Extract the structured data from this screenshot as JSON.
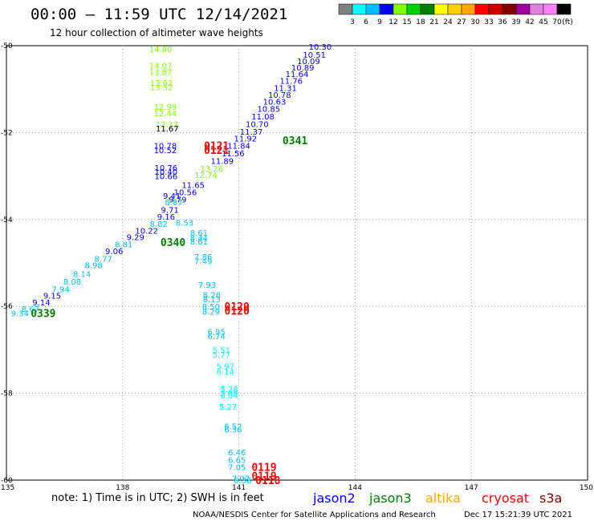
{
  "header": {
    "title": "00:00 – 11:59 UTC 12/14/2021",
    "subtitle": "12 hour collection of altimeter wave heights"
  },
  "color_scale": {
    "labels": [
      "3",
      "6",
      "9",
      "12",
      "15",
      "18",
      "21",
      "24",
      "27",
      "30",
      "33",
      "36",
      "39",
      "42",
      "45",
      "70"
    ],
    "colors": [
      "#808080",
      "#00ffff",
      "#00bfff",
      "#0000ff",
      "#7fff00",
      "#00d000",
      "#008000",
      "#ffff00",
      "#ffd000",
      "#ffa500",
      "#ff0000",
      "#d00000",
      "#800000",
      "#a000a0",
      "#e080e0",
      "#ff80ff",
      "#000000"
    ],
    "unit": "(ft)"
  },
  "footer": {
    "note": "note:  1) Time is in UTC;  2) SWH is in feet",
    "credit": "NOAA/NESDIS Center for Satellite Applications and Research",
    "timestamp": "Dec 17 15:21:39 UTC 2021"
  },
  "legend": [
    {
      "name": "jason2",
      "color": "#0000ff"
    },
    {
      "name": "jason3",
      "color": "#008000"
    },
    {
      "name": "altika",
      "color": "#ffa500"
    },
    {
      "name": "cryosat",
      "color": "#ff0000"
    },
    {
      "name": "s3a",
      "color": "#800000"
    }
  ],
  "chart_data": {
    "type": "scatter",
    "xlim": [
      135,
      150
    ],
    "ylim": [
      -60,
      -50
    ],
    "x_ticks": [
      "135",
      "138",
      "141",
      "144",
      "147",
      "150"
    ],
    "y_ticks": [
      "-50",
      "-52",
      "-54",
      "-56",
      "-58",
      "-60"
    ],
    "grid": true,
    "points": [
      {
        "x": 143.1,
        "y": -50.02,
        "v": "10.30",
        "c": "#0000ff"
      },
      {
        "x": 142.95,
        "y": -50.2,
        "v": "10.51",
        "c": "#0000ff"
      },
      {
        "x": 142.8,
        "y": -50.35,
        "v": "10.09",
        "c": "#0000ff"
      },
      {
        "x": 142.65,
        "y": -50.5,
        "v": "10.89",
        "c": "#0000ff"
      },
      {
        "x": 142.5,
        "y": -50.65,
        "v": "11.64",
        "c": "#0000ff"
      },
      {
        "x": 142.35,
        "y": -50.8,
        "v": "11.76",
        "c": "#0000ff"
      },
      {
        "x": 142.2,
        "y": -50.97,
        "v": "11.31",
        "c": "#0000ff"
      },
      {
        "x": 142.05,
        "y": -51.13,
        "v": "10.78",
        "c": "#0000ff"
      },
      {
        "x": 141.92,
        "y": -51.28,
        "v": "10.63",
        "c": "#0000ff"
      },
      {
        "x": 141.77,
        "y": -51.45,
        "v": "10.85",
        "c": "#0000ff"
      },
      {
        "x": 141.62,
        "y": -51.62,
        "v": "11.08",
        "c": "#0000ff"
      },
      {
        "x": 141.47,
        "y": -51.8,
        "v": "10.70",
        "c": "#0000ff"
      },
      {
        "x": 141.32,
        "y": -51.97,
        "v": "11.37",
        "c": "#0000ff"
      },
      {
        "x": 141.17,
        "y": -52.13,
        "v": "11.92",
        "c": "#0000ff"
      },
      {
        "x": 141.0,
        "y": -52.3,
        "v": "11.84",
        "c": "#0000ff"
      },
      {
        "x": 140.85,
        "y": -52.47,
        "v": "11.56",
        "c": "#0000ff"
      },
      {
        "x": 140.57,
        "y": -52.65,
        "v": "11.89",
        "c": "#0000ff"
      },
      {
        "x": 139.82,
        "y": -53.2,
        "v": "11.65",
        "c": "#0000ff"
      },
      {
        "x": 139.62,
        "y": -53.37,
        "v": "10.56",
        "c": "#0000ff"
      },
      {
        "x": 139.42,
        "y": -53.53,
        "v": "9.79",
        "c": "#0000ff"
      },
      {
        "x": 139.27,
        "y": -53.45,
        "v": "9.41",
        "c": "#0000ff"
      },
      {
        "x": 139.32,
        "y": -53.6,
        "v": "8.87",
        "c": "#00bfff"
      },
      {
        "x": 139.22,
        "y": -53.77,
        "v": "9.71",
        "c": "#0000ff"
      },
      {
        "x": 139.12,
        "y": -53.93,
        "v": "9.16",
        "c": "#0000ff"
      },
      {
        "x": 139.6,
        "y": -54.07,
        "v": "8.53",
        "c": "#00bfff"
      },
      {
        "x": 138.93,
        "y": -54.1,
        "v": "8.82",
        "c": "#00bfff"
      },
      {
        "x": 138.62,
        "y": -54.25,
        "v": "10.22",
        "c": "#0000ff"
      },
      {
        "x": 138.33,
        "y": -54.4,
        "v": "9.29",
        "c": "#0000ff"
      },
      {
        "x": 139.97,
        "y": -54.3,
        "v": "8.61",
        "c": "#00bfff"
      },
      {
        "x": 139.97,
        "y": -54.42,
        "v": "8.44",
        "c": "#00bfff"
      },
      {
        "x": 139.97,
        "y": -54.5,
        "v": "8.61",
        "c": "#00bfff"
      },
      {
        "x": 138.03,
        "y": -54.57,
        "v": "8.81",
        "c": "#00bfff"
      },
      {
        "x": 137.78,
        "y": -54.72,
        "v": "9.06",
        "c": "#0000ff"
      },
      {
        "x": 137.5,
        "y": -54.9,
        "v": "8.77",
        "c": "#00bfff"
      },
      {
        "x": 140.08,
        "y": -54.85,
        "v": "7.86",
        "c": "#00bfff"
      },
      {
        "x": 140.08,
        "y": -54.95,
        "v": "7.49",
        "c": "#00bfff"
      },
      {
        "x": 137.25,
        "y": -55.05,
        "v": "8.98",
        "c": "#00bfff"
      },
      {
        "x": 136.95,
        "y": -55.25,
        "v": "8.14",
        "c": "#00bfff"
      },
      {
        "x": 136.7,
        "y": -55.42,
        "v": "8.08",
        "c": "#00bfff"
      },
      {
        "x": 140.18,
        "y": -55.5,
        "v": "7.93",
        "c": "#00bfff"
      },
      {
        "x": 136.4,
        "y": -55.6,
        "v": "7.94",
        "c": "#00bfff"
      },
      {
        "x": 140.3,
        "y": -55.73,
        "v": "8.28",
        "c": "#00bfff"
      },
      {
        "x": 136.18,
        "y": -55.75,
        "v": "9.15",
        "c": "#0000ff"
      },
      {
        "x": 140.3,
        "y": -55.83,
        "v": "8.13",
        "c": "#00bfff"
      },
      {
        "x": 135.9,
        "y": -55.9,
        "v": "9.14",
        "c": "#0000ff"
      },
      {
        "x": 140.28,
        "y": -56.0,
        "v": "8.50",
        "c": "#00bfff"
      },
      {
        "x": 135.62,
        "y": -56.05,
        "v": "8.67",
        "c": "#00bfff"
      },
      {
        "x": 140.28,
        "y": -56.12,
        "v": "8.29",
        "c": "#00bfff"
      },
      {
        "x": 135.35,
        "y": -56.15,
        "v": "9.34",
        "c": "#00bfff"
      },
      {
        "x": 140.42,
        "y": -56.58,
        "v": "6.95",
        "c": "#00bfff"
      },
      {
        "x": 140.42,
        "y": -56.68,
        "v": "6.74",
        "c": "#00bfff"
      },
      {
        "x": 140.55,
        "y": -57.0,
        "v": "5.51",
        "c": "#00ffff"
      },
      {
        "x": 140.55,
        "y": -57.1,
        "v": "5.77",
        "c": "#00ffff"
      },
      {
        "x": 140.65,
        "y": -57.37,
        "v": "5.97",
        "c": "#00ffff"
      },
      {
        "x": 140.65,
        "y": -57.5,
        "v": "6.14",
        "c": "#00ffff"
      },
      {
        "x": 140.75,
        "y": -57.9,
        "v": "5.28",
        "c": "#00ffff"
      },
      {
        "x": 140.75,
        "y": -57.98,
        "v": "5.68",
        "c": "#00ffff"
      },
      {
        "x": 140.75,
        "y": -58.04,
        "v": "6.04",
        "c": "#00ffff"
      },
      {
        "x": 140.72,
        "y": -58.3,
        "v": "5.27",
        "c": "#00ffff"
      },
      {
        "x": 140.85,
        "y": -58.75,
        "v": "6.52",
        "c": "#00bfff"
      },
      {
        "x": 140.85,
        "y": -58.83,
        "v": "6.36",
        "c": "#00bfff"
      },
      {
        "x": 140.95,
        "y": -59.35,
        "v": "6.46",
        "c": "#00bfff"
      },
      {
        "x": 140.95,
        "y": -59.53,
        "v": "6.65",
        "c": "#00bfff"
      },
      {
        "x": 140.95,
        "y": -59.7,
        "v": "7.05",
        "c": "#00bfff"
      },
      {
        "x": 141.05,
        "y": -59.95,
        "v": "7.02",
        "c": "#00bfff"
      },
      {
        "x": 141.1,
        "y": -60.0,
        "v": "6.38",
        "c": "#00bfff"
      },
      {
        "x": 138.98,
        "y": -50.07,
        "v": "14.80",
        "c": "#7fff00"
      },
      {
        "x": 138.98,
        "y": -50.45,
        "v": "14.07",
        "c": "#7fff00"
      },
      {
        "x": 138.98,
        "y": -50.6,
        "v": "13.87",
        "c": "#7fff00"
      },
      {
        "x": 139.0,
        "y": -50.85,
        "v": "13.62",
        "c": "#7fff00"
      },
      {
        "x": 139.0,
        "y": -50.95,
        "v": "13.52",
        "c": "#7fff00"
      },
      {
        "x": 139.1,
        "y": -51.4,
        "v": "12.99",
        "c": "#7fff00"
      },
      {
        "x": 139.1,
        "y": -51.55,
        "v": "12.44",
        "c": "#7fff00"
      },
      {
        "x": 139.15,
        "y": -51.8,
        "v": "12.12",
        "c": "#7fff00"
      },
      {
        "x": 139.15,
        "y": -51.9,
        "v": "11.67",
        "c": "#000000"
      },
      {
        "x": 139.1,
        "y": -52.3,
        "v": "10.78",
        "c": "#0000ff"
      },
      {
        "x": 139.1,
        "y": -52.4,
        "v": "10.52",
        "c": "#0000ff"
      },
      {
        "x": 139.12,
        "y": -52.8,
        "v": "10.76",
        "c": "#0000ff"
      },
      {
        "x": 139.12,
        "y": -52.9,
        "v": "10.40",
        "c": "#0000ff"
      },
      {
        "x": 139.12,
        "y": -53.0,
        "v": "10.66",
        "c": "#0000ff"
      },
      {
        "x": 140.3,
        "y": -52.82,
        "v": "13.26",
        "c": "#7fff00"
      },
      {
        "x": 140.15,
        "y": -52.97,
        "v": "12.74",
        "c": "#7fff00"
      }
    ],
    "annotations": [
      {
        "x": 140.42,
        "y": -52.3,
        "text": "0121",
        "c": "#ff0000"
      },
      {
        "x": 140.42,
        "y": -52.4,
        "text": "0121",
        "c": "#ff0000"
      },
      {
        "x": 142.45,
        "y": -52.18,
        "text": "0341",
        "c": "#008000"
      },
      {
        "x": 139.3,
        "y": -54.52,
        "text": "0340",
        "c": "#008000"
      },
      {
        "x": 140.95,
        "y": -56.0,
        "text": "0120",
        "c": "#ff0000"
      },
      {
        "x": 140.95,
        "y": -56.1,
        "text": "0120",
        "c": "#ff0000"
      },
      {
        "x": 135.95,
        "y": -56.15,
        "text": "0339",
        "c": "#008000"
      },
      {
        "x": 141.65,
        "y": -59.7,
        "text": "0119",
        "c": "#ff0000"
      },
      {
        "x": 141.65,
        "y": -59.9,
        "text": "0119",
        "c": "#ff0000"
      },
      {
        "x": 141.75,
        "y": -60.0,
        "text": "0118",
        "c": "#ff0000"
      }
    ]
  }
}
